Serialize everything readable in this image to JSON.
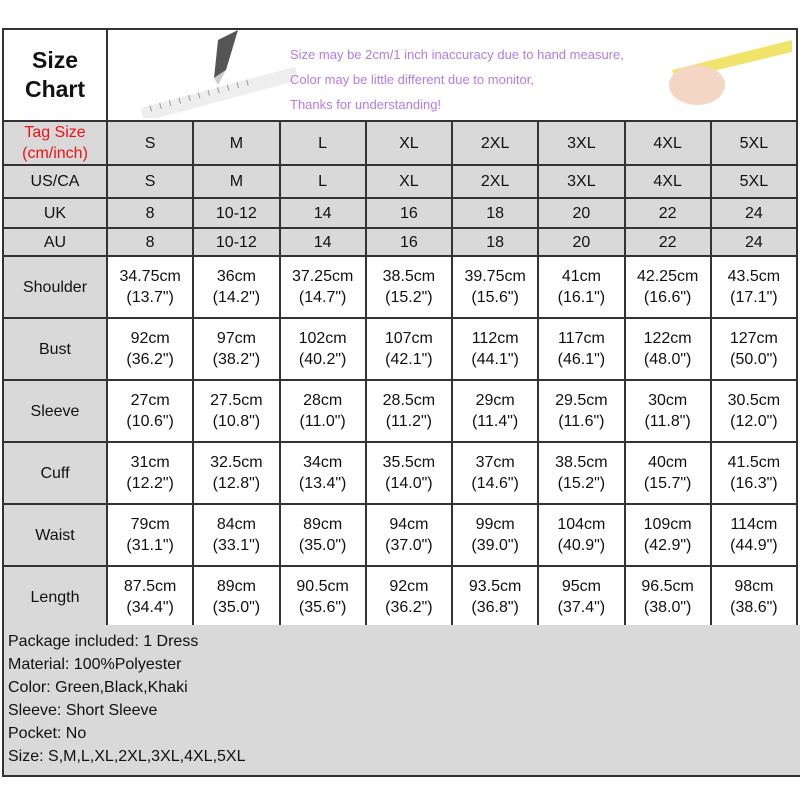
{
  "header": {
    "title_line1": "Size",
    "title_line2": "Chart",
    "notes": [
      "Size may be 2cm/1 inch inaccuracy due to hand measure,",
      "Color may be little different due to monitor,",
      "Thanks for understanding!"
    ]
  },
  "tag_label_line1": "Tag Size",
  "tag_label_line2": "(cm/inch)",
  "sizes": [
    "S",
    "M",
    "L",
    "XL",
    "2XL",
    "3XL",
    "4XL",
    "5XL"
  ],
  "conversion_rows": [
    {
      "label": "US/CA",
      "values": [
        "S",
        "M",
        "L",
        "XL",
        "2XL",
        "3XL",
        "4XL",
        "5XL"
      ]
    },
    {
      "label": "UK",
      "values": [
        "8",
        "10-12",
        "14",
        "16",
        "18",
        "20",
        "22",
        "24"
      ]
    },
    {
      "label": "AU",
      "values": [
        "8",
        "10-12",
        "14",
        "16",
        "18",
        "20",
        "22",
        "24"
      ]
    }
  ],
  "measure_rows": [
    {
      "label": "Shoulder",
      "cm": [
        "34.75cm",
        "36cm",
        "37.25cm",
        "38.5cm",
        "39.75cm",
        "41cm",
        "42.25cm",
        "43.5cm"
      ],
      "inch": [
        "(13.7\")",
        "(14.2\")",
        "(14.7\")",
        "(15.2\")",
        "(15.6\")",
        "(16.1\")",
        "(16.6\")",
        "(17.1\")"
      ]
    },
    {
      "label": "Bust",
      "cm": [
        "92cm",
        "97cm",
        "102cm",
        "107cm",
        "112cm",
        "117cm",
        "122cm",
        "127cm"
      ],
      "inch": [
        "(36.2\")",
        "(38.2\")",
        "(40.2\")",
        "(42.1\")",
        "(44.1\")",
        "(46.1\")",
        "(48.0\")",
        "(50.0\")"
      ]
    },
    {
      "label": "Sleeve",
      "cm": [
        "27cm",
        "27.5cm",
        "28cm",
        "28.5cm",
        "29cm",
        "29.5cm",
        "30cm",
        "30.5cm"
      ],
      "inch": [
        "(10.6\")",
        "(10.8\")",
        "(11.0\")",
        "(11.2\")",
        "(11.4\")",
        "(11.6\")",
        "(11.8\")",
        "(12.0\")"
      ]
    },
    {
      "label": "Cuff",
      "cm": [
        "31cm",
        "32.5cm",
        "34cm",
        "35.5cm",
        "37cm",
        "38.5cm",
        "40cm",
        "41.5cm"
      ],
      "inch": [
        "(12.2\")",
        "(12.8\")",
        "(13.4\")",
        "(14.0\")",
        "(14.6\")",
        "(15.2\")",
        "(15.7\")",
        "(16.3\")"
      ]
    },
    {
      "label": "Waist",
      "cm": [
        "79cm",
        "84cm",
        "89cm",
        "94cm",
        "99cm",
        "104cm",
        "109cm",
        "114cm"
      ],
      "inch": [
        "(31.1\")",
        "(33.1\")",
        "(35.0\")",
        "(37.0\")",
        "(39.0\")",
        "(40.9\")",
        "(42.9\")",
        "(44.9\")"
      ]
    },
    {
      "label": "Length",
      "cm": [
        "87.5cm",
        "89cm",
        "90.5cm",
        "92cm",
        "93.5cm",
        "95cm",
        "96.5cm",
        "98cm"
      ],
      "inch": [
        "(34.4\")",
        "(35.0\")",
        "(35.6\")",
        "(36.2\")",
        "(36.8\")",
        "(37.4\")",
        "(38.0\")",
        "(38.6\")"
      ]
    }
  ],
  "footer": [
    "Package included: 1 Dress",
    "Material: 100%Polyester",
    "Color: Green,Black,Khaki",
    "Sleeve: Short Sleeve",
    "Pocket: No",
    "Size: S,M,L,XL,2XL,3XL,4XL,5XL"
  ],
  "colors": {
    "note_text": "#b77be0",
    "tag_label": "#ee1111",
    "header_fill": "#d9d9d9"
  }
}
